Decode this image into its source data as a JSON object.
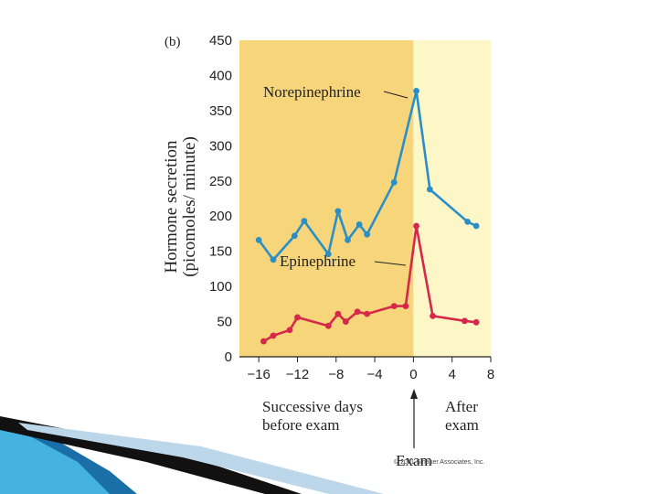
{
  "chart_data": {
    "type": "line",
    "panel_label": "(b)",
    "ylabel_line1": "Hormone secretion",
    "ylabel_line2": "(picomoles/ minute)",
    "x_ticks": [
      "−16",
      "−12",
      "−8",
      "−4",
      "0",
      "4",
      "8"
    ],
    "x_tick_values": [
      -16,
      -12,
      -8,
      -4,
      0,
      4,
      8
    ],
    "y_ticks": [
      0,
      50,
      100,
      150,
      200,
      250,
      300,
      350,
      400,
      450
    ],
    "xlim": [
      -18,
      8
    ],
    "ylim": [
      0,
      450
    ],
    "before_region": [
      -18,
      0
    ],
    "after_region": [
      0,
      8
    ],
    "region_colors": {
      "before": "#f7d57a",
      "after": "#fdf6c6"
    },
    "series": [
      {
        "name": "Norepinephrine",
        "color": "#2b8fc7",
        "x": [
          -16,
          -14.5,
          -12.3,
          -11.3,
          -8.8,
          -7.8,
          -6.8,
          -5.6,
          -4.8,
          -2,
          0.3,
          1.7,
          5.6,
          6.5
        ],
        "y": [
          166,
          138,
          172,
          193,
          146,
          207,
          166,
          188,
          174,
          248,
          378,
          238,
          192,
          186
        ]
      },
      {
        "name": "Epinephrine",
        "color": "#d6284a",
        "x": [
          -15.5,
          -14.5,
          -12.8,
          -12,
          -8.8,
          -7.8,
          -7,
          -5.8,
          -4.8,
          -2,
          -0.8,
          0.3,
          2,
          5.3,
          6.5
        ],
        "y": [
          22,
          30,
          38,
          56,
          44,
          61,
          50,
          64,
          61,
          72,
          72,
          186,
          58,
          51,
          49
        ]
      }
    ],
    "annotations": {
      "before_line1": "Successive days",
      "before_line2": "before exam",
      "after_line1": "After",
      "after_line2": "exam",
      "exam_label": "Exam"
    },
    "credit": "© 2001 Sinauer Associates, Inc."
  },
  "decoration": {
    "swoosh_colors": [
      "#1a6fa8",
      "#45b3e0",
      "#111111",
      "#bcd7ea"
    ]
  }
}
